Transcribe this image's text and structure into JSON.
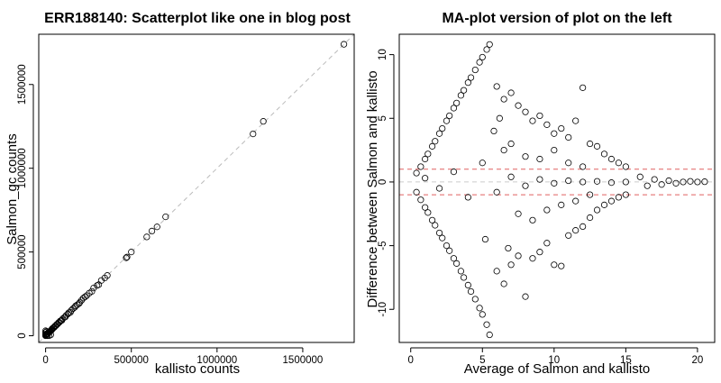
{
  "chart_data": [
    {
      "type": "scatter",
      "title": "ERR188140: Scatterplot like one in blog post",
      "xlabel": "kallisto counts",
      "ylabel": "Salmon_gc counts",
      "xlim": [
        -40000,
        1800000
      ],
      "ylim": [
        -40000,
        1800000
      ],
      "xticks": [
        0,
        500000,
        1000000,
        1500000
      ],
      "yticks": [
        0,
        500000,
        1000000,
        1500000
      ],
      "xtick_labels": [
        "0",
        "500000",
        "1000000",
        "1500000"
      ],
      "ytick_labels": [
        "0",
        "500000",
        "1000000",
        "1500000"
      ],
      "reference_line": {
        "type": "identity",
        "style": "dashed",
        "color": "#bbbbbb"
      },
      "marker": "open-circle",
      "points": [
        [
          1740000,
          1740000
        ],
        [
          1270000,
          1280000
        ],
        [
          1210000,
          1205000
        ],
        [
          700000,
          710000
        ],
        [
          650000,
          650000
        ],
        [
          620000,
          625000
        ],
        [
          590000,
          590000
        ],
        [
          500000,
          500000
        ],
        [
          475000,
          470000
        ],
        [
          470000,
          465000
        ],
        [
          360000,
          360000
        ],
        [
          345000,
          345000
        ],
        [
          325000,
          330000
        ],
        [
          310000,
          305000
        ],
        [
          300000,
          300000
        ],
        [
          280000,
          285000
        ],
        [
          270000,
          265000
        ],
        [
          255000,
          255000
        ],
        [
          240000,
          240000
        ],
        [
          230000,
          232000
        ],
        [
          220000,
          225000
        ],
        [
          210000,
          212000
        ],
        [
          200000,
          200000
        ],
        [
          195000,
          192000
        ],
        [
          185000,
          185000
        ],
        [
          175000,
          178000
        ],
        [
          170000,
          170000
        ],
        [
          160000,
          162000
        ],
        [
          150000,
          152000
        ],
        [
          145000,
          140000
        ],
        [
          135000,
          138000
        ],
        [
          130000,
          130000
        ],
        [
          120000,
          122000
        ],
        [
          115000,
          112000
        ],
        [
          110000,
          110000
        ],
        [
          100000,
          102000
        ],
        [
          95000,
          92000
        ],
        [
          90000,
          90000
        ],
        [
          85000,
          88000
        ],
        [
          80000,
          80000
        ],
        [
          75000,
          78000
        ],
        [
          70000,
          70000
        ],
        [
          65000,
          68000
        ],
        [
          60000,
          60000
        ],
        [
          55000,
          58000
        ],
        [
          50000,
          50000
        ],
        [
          45000,
          48000
        ],
        [
          40000,
          40000
        ],
        [
          38000,
          42000
        ],
        [
          35000,
          35000
        ],
        [
          32000,
          30000
        ],
        [
          30000,
          32000
        ],
        [
          28000,
          28000
        ],
        [
          25000,
          25000
        ],
        [
          22000,
          24000
        ],
        [
          20000,
          20000
        ],
        [
          18000,
          22000
        ],
        [
          15000,
          15000
        ],
        [
          12000,
          14000
        ],
        [
          10000,
          10000
        ],
        [
          8000,
          12000
        ],
        [
          6000,
          6000
        ],
        [
          5000,
          8000
        ],
        [
          3000,
          3000
        ],
        [
          2000,
          4000
        ],
        [
          1000,
          1000
        ],
        [
          500,
          2500
        ],
        [
          0,
          0
        ],
        [
          0,
          30000
        ],
        [
          0,
          20000
        ],
        [
          0,
          10000
        ],
        [
          0,
          5000
        ],
        [
          20000,
          0
        ],
        [
          10000,
          0
        ],
        [
          30000,
          5000
        ],
        [
          5000,
          25000
        ]
      ]
    },
    {
      "type": "scatter",
      "title": "MA-plot version of plot on the left",
      "xlabel": "Average of Salmon and kallisto",
      "ylabel": "Difference between Salmon and kallisto",
      "xlim": [
        -0.8,
        21.2
      ],
      "ylim": [
        -12.6,
        11.6
      ],
      "xticks": [
        0,
        5,
        10,
        15,
        20
      ],
      "yticks": [
        -10,
        -5,
        0,
        5,
        10
      ],
      "xtick_labels": [
        "0",
        "5",
        "10",
        "15",
        "20"
      ],
      "ytick_labels": [
        "-10",
        "-5",
        "0",
        "5",
        "10"
      ],
      "marker": "open-circle",
      "hlines": [
        {
          "y": 1,
          "style": "dashed",
          "color": "#e06060"
        },
        {
          "y": -1,
          "style": "dashed",
          "color": "#e06060"
        },
        {
          "y": 0,
          "style": "dashed",
          "color": "#cccccc"
        }
      ],
      "points": [
        [
          5.5,
          10.8
        ],
        [
          5.3,
          10.4
        ],
        [
          5.0,
          9.8
        ],
        [
          4.8,
          9.4
        ],
        [
          4.5,
          8.8
        ],
        [
          4.2,
          8.2
        ],
        [
          4.0,
          7.8
        ],
        [
          3.7,
          7.2
        ],
        [
          3.5,
          6.8
        ],
        [
          3.2,
          6.2
        ],
        [
          3.0,
          5.8
        ],
        [
          2.7,
          5.2
        ],
        [
          2.5,
          4.8
        ],
        [
          2.2,
          4.2
        ],
        [
          2.0,
          3.8
        ],
        [
          1.7,
          3.2
        ],
        [
          1.5,
          2.8
        ],
        [
          1.2,
          2.2
        ],
        [
          1.0,
          1.8
        ],
        [
          0.7,
          1.2
        ],
        [
          0.4,
          0.7
        ],
        [
          5.5,
          -12.0
        ],
        [
          5.3,
          -11.2
        ],
        [
          5.0,
          -10.4
        ],
        [
          4.8,
          -9.9
        ],
        [
          4.5,
          -9.2
        ],
        [
          4.2,
          -8.6
        ],
        [
          4.0,
          -8.1
        ],
        [
          3.7,
          -7.5
        ],
        [
          3.5,
          -7.0
        ],
        [
          3.2,
          -6.4
        ],
        [
          3.0,
          -6.0
        ],
        [
          2.7,
          -5.4
        ],
        [
          2.5,
          -5.0
        ],
        [
          2.2,
          -4.4
        ],
        [
          2.0,
          -4.0
        ],
        [
          1.7,
          -3.4
        ],
        [
          1.5,
          -3.0
        ],
        [
          1.2,
          -2.4
        ],
        [
          1.0,
          -2.0
        ],
        [
          0.7,
          -1.4
        ],
        [
          0.4,
          -0.8
        ],
        [
          6.0,
          7.5
        ],
        [
          6.5,
          6.5
        ],
        [
          7.0,
          7.0
        ],
        [
          7.5,
          6.0
        ],
        [
          8.0,
          5.5
        ],
        [
          8.5,
          4.8
        ],
        [
          9.0,
          5.2
        ],
        [
          9.5,
          4.5
        ],
        [
          10.0,
          3.8
        ],
        [
          10.5,
          4.2
        ],
        [
          11.0,
          3.5
        ],
        [
          11.5,
          4.8
        ],
        [
          12.0,
          7.4
        ],
        [
          12.5,
          3.0
        ],
        [
          13.0,
          2.8
        ],
        [
          13.5,
          2.2
        ],
        [
          14.0,
          1.8
        ],
        [
          14.5,
          1.5
        ],
        [
          15.0,
          1.2
        ],
        [
          6.0,
          -7.0
        ],
        [
          6.5,
          -8.0
        ],
        [
          7.0,
          -6.5
        ],
        [
          7.5,
          -5.8
        ],
        [
          8.0,
          -9.0
        ],
        [
          8.5,
          -6.0
        ],
        [
          9.0,
          -5.5
        ],
        [
          9.5,
          -4.8
        ],
        [
          10.0,
          -6.5
        ],
        [
          10.5,
          -6.6
        ],
        [
          11.0,
          -4.2
        ],
        [
          11.5,
          -3.8
        ],
        [
          12.0,
          -3.5
        ],
        [
          12.5,
          -2.8
        ],
        [
          13.0,
          -2.2
        ],
        [
          13.5,
          -1.8
        ],
        [
          14.0,
          -1.5
        ],
        [
          14.5,
          -1.2
        ],
        [
          15.0,
          -1.0
        ],
        [
          6.5,
          2.5
        ],
        [
          7.0,
          3.0
        ],
        [
          7.5,
          -2.5
        ],
        [
          8.0,
          2.0
        ],
        [
          8.5,
          -3.0
        ],
        [
          9.0,
          1.8
        ],
        [
          9.5,
          -2.2
        ],
        [
          10.0,
          2.5
        ],
        [
          10.5,
          -1.8
        ],
        [
          11.0,
          1.5
        ],
        [
          11.5,
          -1.5
        ],
        [
          12.0,
          1.2
        ],
        [
          12.5,
          -1.0
        ],
        [
          16.0,
          0.4
        ],
        [
          16.5,
          -0.3
        ],
        [
          17.0,
          0.2
        ],
        [
          17.5,
          -0.2
        ],
        [
          18.0,
          0.1
        ],
        [
          18.5,
          -0.1
        ],
        [
          19.0,
          0.0
        ],
        [
          19.5,
          0.05
        ],
        [
          20.0,
          0.0
        ],
        [
          20.5,
          0.02
        ],
        [
          1.0,
          0.3
        ],
        [
          2.0,
          -0.5
        ],
        [
          3.0,
          0.8
        ],
        [
          4.0,
          -1.2
        ],
        [
          5.0,
          1.5
        ],
        [
          6.0,
          -0.8
        ],
        [
          7.0,
          0.4
        ],
        [
          8.0,
          -0.3
        ],
        [
          9.0,
          0.2
        ],
        [
          10.0,
          -0.1
        ],
        [
          11.0,
          0.1
        ],
        [
          12.0,
          0.0
        ],
        [
          13.0,
          0.05
        ],
        [
          14.0,
          -0.05
        ],
        [
          15.0,
          0.0
        ],
        [
          5.8,
          4.0
        ],
        [
          5.2,
          -4.5
        ],
        [
          6.2,
          5.0
        ],
        [
          6.8,
          -5.2
        ]
      ]
    }
  ]
}
